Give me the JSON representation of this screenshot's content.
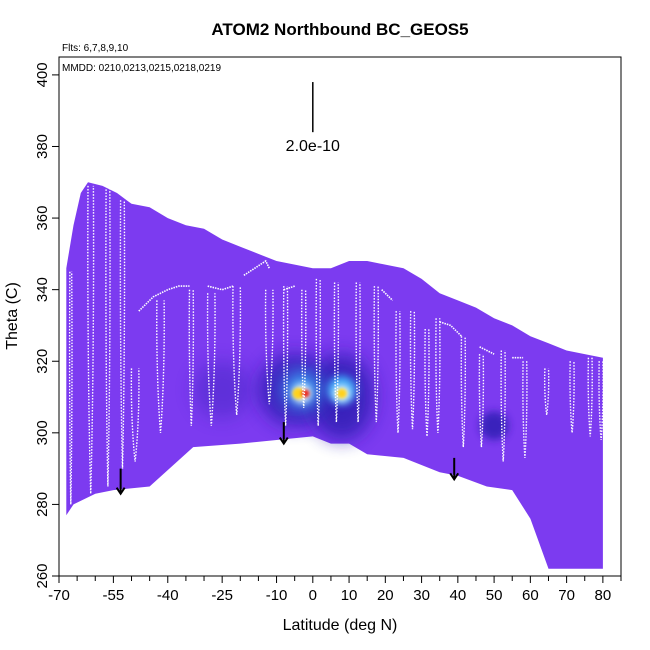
{
  "chart_data": {
    "type": "heatmap",
    "title": "ATOM2 Northbound BC_GEOS5",
    "xlabel": "Latitude (deg N)",
    "ylabel": "Theta (C)",
    "xlim": [
      -70,
      85
    ],
    "ylim": [
      260,
      405
    ],
    "x_ticks": [
      -70,
      -55,
      -40,
      -25,
      -10,
      0,
      10,
      20,
      30,
      40,
      50,
      60,
      70,
      80
    ],
    "x_minor_ticks": [
      -65,
      -60,
      -50,
      -45,
      -35,
      -30,
      -20,
      -15,
      -5,
      5,
      15,
      25,
      35,
      45,
      55,
      65,
      75,
      85
    ],
    "y_ticks": [
      260,
      280,
      300,
      320,
      340,
      360,
      380,
      400
    ],
    "annotations": {
      "flights": "Flts: 6,7,8,9,10",
      "dates": "MMDD: 0210,0213,0215,0218,0219",
      "scale_label": "2.0e-10"
    },
    "scale_bar": {
      "x": 0,
      "y_top": 398,
      "y_bottom": 384
    },
    "colors": {
      "base": "#7c3bf0",
      "dark_blue": "#2a1fb0",
      "light_blue": "#40b8ff",
      "white": "#ffffff",
      "yellow": "#ffd21c",
      "red": "#e8281a",
      "flight_track": "#ffffff"
    },
    "coverage_top": [
      [
        -68,
        346
      ],
      [
        -66,
        358
      ],
      [
        -64,
        367
      ],
      [
        -62,
        370
      ],
      [
        -58,
        369
      ],
      [
        -54,
        367
      ],
      [
        -50,
        364
      ],
      [
        -45,
        363
      ],
      [
        -40,
        360
      ],
      [
        -35,
        358
      ],
      [
        -30,
        357
      ],
      [
        -25,
        354
      ],
      [
        -20,
        352
      ],
      [
        -15,
        350
      ],
      [
        -10,
        348
      ],
      [
        -5,
        347
      ],
      [
        0,
        346
      ],
      [
        5,
        346
      ],
      [
        10,
        348
      ],
      [
        15,
        348
      ],
      [
        20,
        347
      ],
      [
        25,
        346
      ],
      [
        30,
        343
      ],
      [
        35,
        339
      ],
      [
        40,
        337
      ],
      [
        45,
        335
      ],
      [
        50,
        332
      ],
      [
        55,
        330
      ],
      [
        60,
        327
      ],
      [
        65,
        325
      ],
      [
        70,
        323
      ],
      [
        75,
        322
      ],
      [
        80,
        321
      ]
    ],
    "coverage_bottom": [
      [
        -68,
        277
      ],
      [
        -66,
        280
      ],
      [
        -60,
        283
      ],
      [
        -55,
        284
      ],
      [
        -45,
        285
      ],
      [
        -33,
        296
      ],
      [
        -20,
        297
      ],
      [
        -10,
        298
      ],
      [
        0,
        299
      ],
      [
        5,
        297
      ],
      [
        10,
        297
      ],
      [
        15,
        294
      ],
      [
        25,
        293
      ],
      [
        35,
        289
      ],
      [
        40,
        288
      ],
      [
        48,
        285
      ],
      [
        55,
        284
      ],
      [
        60,
        276
      ],
      [
        65,
        262
      ],
      [
        70,
        262
      ],
      [
        80,
        262
      ]
    ],
    "concentration_blobs": [
      {
        "x": -5,
        "y": 312,
        "rx": 10,
        "ry": 10,
        "color": "dark_blue",
        "opacity": 0.8
      },
      {
        "x": 8,
        "y": 310,
        "rx": 9,
        "ry": 12,
        "color": "dark_blue",
        "opacity": 0.8
      },
      {
        "x": -3,
        "y": 312,
        "rx": 5,
        "ry": 5,
        "color": "light_blue",
        "opacity": 0.9
      },
      {
        "x": 8,
        "y": 312,
        "rx": 4,
        "ry": 4,
        "color": "light_blue",
        "opacity": 0.9
      },
      {
        "x": -3,
        "y": 311,
        "rx": 2.5,
        "ry": 2.5,
        "color": "white",
        "opacity": 1
      },
      {
        "x": 8,
        "y": 311,
        "rx": 2.2,
        "ry": 2.2,
        "color": "white",
        "opacity": 1
      },
      {
        "x": -4,
        "y": 311,
        "rx": 1.6,
        "ry": 1.6,
        "color": "yellow",
        "opacity": 1
      },
      {
        "x": -2,
        "y": 311,
        "rx": 1.1,
        "ry": 1.1,
        "color": "red",
        "opacity": 1
      },
      {
        "x": 8,
        "y": 311,
        "rx": 1.4,
        "ry": 1.4,
        "color": "yellow",
        "opacity": 1
      },
      {
        "x": 50,
        "y": 302,
        "rx": 4,
        "ry": 4,
        "color": "dark_blue",
        "opacity": 0.8
      },
      {
        "x": -25,
        "y": 312,
        "rx": 8,
        "ry": 8,
        "color": "dark_blue",
        "opacity": 0.35
      }
    ],
    "flight_profiles": [
      {
        "x1": -67,
        "x2": -66.5,
        "top": 345,
        "bottom": 280
      },
      {
        "x1": -62,
        "x2": -60.5,
        "top": 369,
        "bottom": 283
      },
      {
        "x1": -57,
        "x2": -56,
        "top": 368,
        "bottom": 285
      },
      {
        "x1": -53,
        "x2": -52,
        "top": 365,
        "bottom": 290
      },
      {
        "x1": -50,
        "x2": -48,
        "top": 318,
        "bottom": 292
      },
      {
        "x1": -43,
        "x2": -41,
        "top": 337,
        "bottom": 300
      },
      {
        "x1": -34,
        "x2": -33,
        "top": 340,
        "bottom": 302
      },
      {
        "x1": -29,
        "x2": -27,
        "top": 339,
        "bottom": 302
      },
      {
        "x1": -22,
        "x2": -20,
        "top": 341,
        "bottom": 305
      },
      {
        "x1": -13,
        "x2": -11,
        "top": 340,
        "bottom": 308
      },
      {
        "x1": -8,
        "x2": -7,
        "top": 341,
        "bottom": 302
      },
      {
        "x1": -3,
        "x2": -2,
        "top": 340,
        "bottom": 307
      },
      {
        "x1": 1,
        "x2": 2,
        "top": 343,
        "bottom": 302
      },
      {
        "x1": 6,
        "x2": 7,
        "top": 342,
        "bottom": 303
      },
      {
        "x1": 12,
        "x2": 13,
        "top": 342,
        "bottom": 303
      },
      {
        "x1": 17,
        "x2": 18,
        "top": 341,
        "bottom": 303
      },
      {
        "x1": 23,
        "x2": 24,
        "top": 334,
        "bottom": 300
      },
      {
        "x1": 27,
        "x2": 28,
        "top": 334,
        "bottom": 301
      },
      {
        "x1": 31,
        "x2": 32,
        "top": 329,
        "bottom": 299
      },
      {
        "x1": 34,
        "x2": 35,
        "top": 332,
        "bottom": 300
      },
      {
        "x1": 41,
        "x2": 42,
        "top": 327,
        "bottom": 296
      },
      {
        "x1": 46,
        "x2": 47,
        "top": 322,
        "bottom": 296
      },
      {
        "x1": 52,
        "x2": 53,
        "top": 323,
        "bottom": 292
      },
      {
        "x1": 58,
        "x2": 59,
        "top": 320,
        "bottom": 293
      },
      {
        "x1": 64,
        "x2": 65,
        "top": 318,
        "bottom": 305
      },
      {
        "x1": 71,
        "x2": 72,
        "top": 320,
        "bottom": 300
      },
      {
        "x1": 76,
        "x2": 77,
        "top": 321,
        "bottom": 299
      },
      {
        "x1": 79,
        "x2": 80,
        "top": 320,
        "bottom": 298
      }
    ],
    "level_tracks": [
      [
        [
          -48,
          334
        ],
        [
          -44,
          338
        ],
        [
          -40,
          340
        ],
        [
          -37,
          341
        ],
        [
          -34,
          341
        ]
      ],
      [
        [
          -29,
          341
        ],
        [
          -25,
          340
        ],
        [
          -22,
          341
        ]
      ],
      [
        [
          -19,
          344
        ],
        [
          -16,
          346
        ],
        [
          -13,
          348
        ],
        [
          -12,
          346
        ]
      ],
      [
        [
          -8,
          340
        ],
        [
          -5,
          341
        ]
      ],
      [
        [
          19,
          340
        ],
        [
          22,
          337
        ]
      ],
      [
        [
          35,
          331
        ],
        [
          38,
          330
        ],
        [
          41,
          327
        ]
      ],
      [
        [
          46,
          324
        ],
        [
          50,
          322
        ]
      ],
      [
        [
          55,
          321
        ],
        [
          58,
          321
        ]
      ]
    ],
    "arrows": [
      {
        "x": -53,
        "y_top": 290,
        "y_bottom": 283
      },
      {
        "x": -8,
        "y_top": 303,
        "y_bottom": 297
      },
      {
        "x": 39,
        "y_top": 293,
        "y_bottom": 287
      }
    ]
  }
}
